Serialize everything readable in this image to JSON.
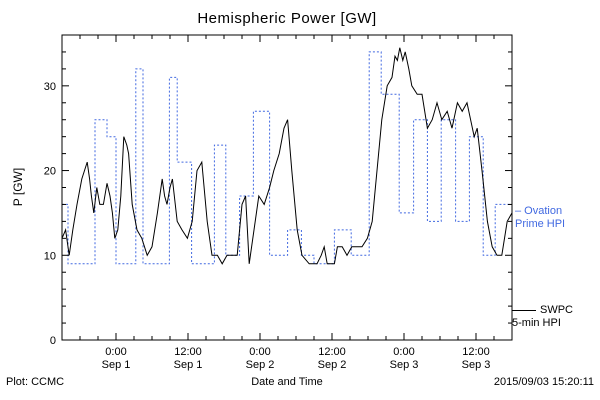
{
  "chart_data": {
    "type": "line",
    "title": "Hemispheric Power [GW]",
    "xlabel": "Date and Time",
    "ylabel": "P [GW]",
    "xlim": [
      0,
      75
    ],
    "ylim": [
      0,
      36
    ],
    "grid": false,
    "legend_position": "right",
    "y_ticks": [
      0,
      10,
      20,
      30
    ],
    "x_ticks": [
      {
        "hour": 9,
        "time": "0:00",
        "date": "Sep 1"
      },
      {
        "hour": 21,
        "time": "12:00",
        "date": "Sep 1"
      },
      {
        "hour": 33,
        "time": "0:00",
        "date": "Sep 2"
      },
      {
        "hour": 45,
        "time": "12:00",
        "date": "Sep 2"
      },
      {
        "hour": 57,
        "time": "0:00",
        "date": "Sep 3"
      },
      {
        "hour": 69,
        "time": "12:00",
        "date": "Sep 3"
      }
    ],
    "series": [
      {
        "id": "ovation-prime-hpi",
        "name": "Ovation Prime HPI",
        "color": "#4169e1",
        "style": "dotted",
        "mode": "step",
        "points": [
          [
            0,
            16
          ],
          [
            1,
            9
          ],
          [
            5.5,
            26
          ],
          [
            7.5,
            24
          ],
          [
            9,
            9
          ],
          [
            12.3,
            32
          ],
          [
            13.5,
            9
          ],
          [
            17.9,
            31
          ],
          [
            19.2,
            21
          ],
          [
            21.6,
            9
          ],
          [
            25.4,
            23
          ],
          [
            27.3,
            10
          ],
          [
            29.6,
            17
          ],
          [
            31.9,
            27
          ],
          [
            34.6,
            10
          ],
          [
            37.6,
            13
          ],
          [
            39.9,
            10
          ],
          [
            42,
            9
          ],
          [
            45.4,
            13
          ],
          [
            48.2,
            10
          ],
          [
            51.2,
            34
          ],
          [
            53.2,
            29
          ],
          [
            56.2,
            15
          ],
          [
            58.6,
            26
          ],
          [
            60.9,
            14
          ],
          [
            63.2,
            26
          ],
          [
            65.6,
            14
          ],
          [
            67.9,
            24
          ],
          [
            70.2,
            10
          ],
          [
            72.2,
            16
          ],
          [
            75,
            16
          ]
        ]
      },
      {
        "id": "swpc-5min-hpi",
        "name": "SWPC 5-min HPI",
        "color": "#000000",
        "style": "solid",
        "mode": "line",
        "points": [
          [
            0,
            12
          ],
          [
            0.6,
            13
          ],
          [
            1.2,
            10
          ],
          [
            1.8,
            13
          ],
          [
            2.5,
            16
          ],
          [
            3.3,
            19
          ],
          [
            4.2,
            21
          ],
          [
            4.6,
            19
          ],
          [
            4.9,
            17
          ],
          [
            5.3,
            15
          ],
          [
            5.8,
            18
          ],
          [
            6.3,
            16
          ],
          [
            6.9,
            16
          ],
          [
            7.5,
            18.5
          ],
          [
            8,
            17
          ],
          [
            8.4,
            15
          ],
          [
            8.8,
            12
          ],
          [
            9.3,
            13
          ],
          [
            9.8,
            17
          ],
          [
            10.3,
            24
          ],
          [
            10.8,
            23
          ],
          [
            11.1,
            22
          ],
          [
            11.7,
            16
          ],
          [
            12.5,
            13
          ],
          [
            13.3,
            12
          ],
          [
            14.2,
            10
          ],
          [
            15,
            11
          ],
          [
            15.9,
            15
          ],
          [
            16.7,
            19
          ],
          [
            17.1,
            17
          ],
          [
            17.5,
            16
          ],
          [
            18,
            18
          ],
          [
            18.4,
            19
          ],
          [
            19.2,
            14
          ],
          [
            20,
            13
          ],
          [
            20.9,
            12
          ],
          [
            21.7,
            14
          ],
          [
            22.5,
            20
          ],
          [
            23.3,
            21
          ],
          [
            24.2,
            14
          ],
          [
            25,
            10
          ],
          [
            25.9,
            10
          ],
          [
            26.7,
            9
          ],
          [
            27.5,
            10
          ],
          [
            29.2,
            10
          ],
          [
            30,
            16
          ],
          [
            30.6,
            17
          ],
          [
            31.2,
            9
          ],
          [
            32,
            13
          ],
          [
            32.8,
            17
          ],
          [
            33.7,
            16
          ],
          [
            34.6,
            18
          ],
          [
            35.3,
            20
          ],
          [
            36.2,
            22
          ],
          [
            37,
            25
          ],
          [
            37.6,
            26
          ],
          [
            38.3,
            20
          ],
          [
            39.2,
            13
          ],
          [
            40,
            10
          ],
          [
            41.2,
            9
          ],
          [
            42.5,
            9
          ],
          [
            43.2,
            10
          ],
          [
            43.7,
            11
          ],
          [
            44.2,
            9
          ],
          [
            45.4,
            9
          ],
          [
            45.9,
            11
          ],
          [
            46.7,
            11
          ],
          [
            47.5,
            10
          ],
          [
            48.3,
            11
          ],
          [
            50,
            11
          ],
          [
            50.9,
            12
          ],
          [
            51.7,
            14
          ],
          [
            52.5,
            20
          ],
          [
            53.3,
            26
          ],
          [
            54.2,
            30
          ],
          [
            55,
            31
          ],
          [
            55.5,
            33.5
          ],
          [
            55.9,
            33
          ],
          [
            56.3,
            34.5
          ],
          [
            56.8,
            33
          ],
          [
            57.2,
            34
          ],
          [
            57.8,
            32
          ],
          [
            58.3,
            30
          ],
          [
            59.2,
            29
          ],
          [
            60,
            29
          ],
          [
            60.9,
            25
          ],
          [
            61.7,
            26
          ],
          [
            62.5,
            28
          ],
          [
            63.3,
            26
          ],
          [
            64.2,
            27
          ],
          [
            65,
            25
          ],
          [
            65.9,
            28
          ],
          [
            66.7,
            27
          ],
          [
            67.5,
            28
          ],
          [
            68.1,
            26
          ],
          [
            68.7,
            24
          ],
          [
            69.2,
            25
          ],
          [
            70,
            20
          ],
          [
            70.9,
            14
          ],
          [
            71.7,
            11
          ],
          [
            72.5,
            10
          ],
          [
            73.3,
            10
          ],
          [
            74.2,
            14
          ],
          [
            75,
            15
          ]
        ]
      }
    ]
  },
  "legend": {
    "ovation_line1": "– Ovation",
    "ovation_line2": "Prime HPI",
    "swpc_line1": "SWPC",
    "swpc_line2": "5-min HPI"
  },
  "footer": {
    "left": "Plot: CCMC",
    "right": "2015/09/03 15:20:11"
  },
  "colors": {
    "ovation_blue": "#4169e1",
    "swpc_black": "#000000"
  }
}
